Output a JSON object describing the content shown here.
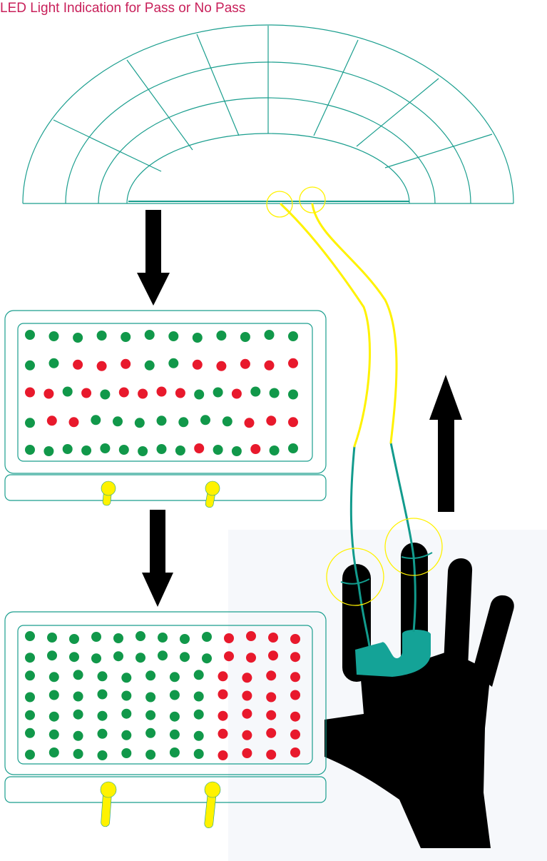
{
  "title": "LED Light Indication for Pass or No Pass",
  "colors": {
    "title": "#c8205a",
    "outline": "#1a9e8e",
    "led_pass": "#11984a",
    "led_fail": "#e8192c",
    "wire": "#fff200",
    "sensor_wire": "#129b8d",
    "arrow": "#000000",
    "hand": "#000000",
    "hand_background": "#f6f8fb",
    "clip": "#14a397"
  },
  "led_panels": [
    {
      "name": "upper-led-panel",
      "rows": [
        "GGGGGGGGGGGG",
        "GGRRRGGRRRRR",
        "RRGRGRRRRGGRGGG",
        "GRRGGGGGGGRRR",
        "GGGGGGGGGRGGRGG"
      ]
    },
    {
      "name": "lower-led-panel",
      "rows": [
        "GGGGGGGGGRRRR",
        "GGGGGGGGGRRRR",
        "GGGGGGGGRRRR",
        "GGGGGGGGRRRR",
        "GGGGGGGGRRRR",
        "GGGGGGGGRRRR",
        "GGGGGGGGRRRR"
      ]
    }
  ]
}
